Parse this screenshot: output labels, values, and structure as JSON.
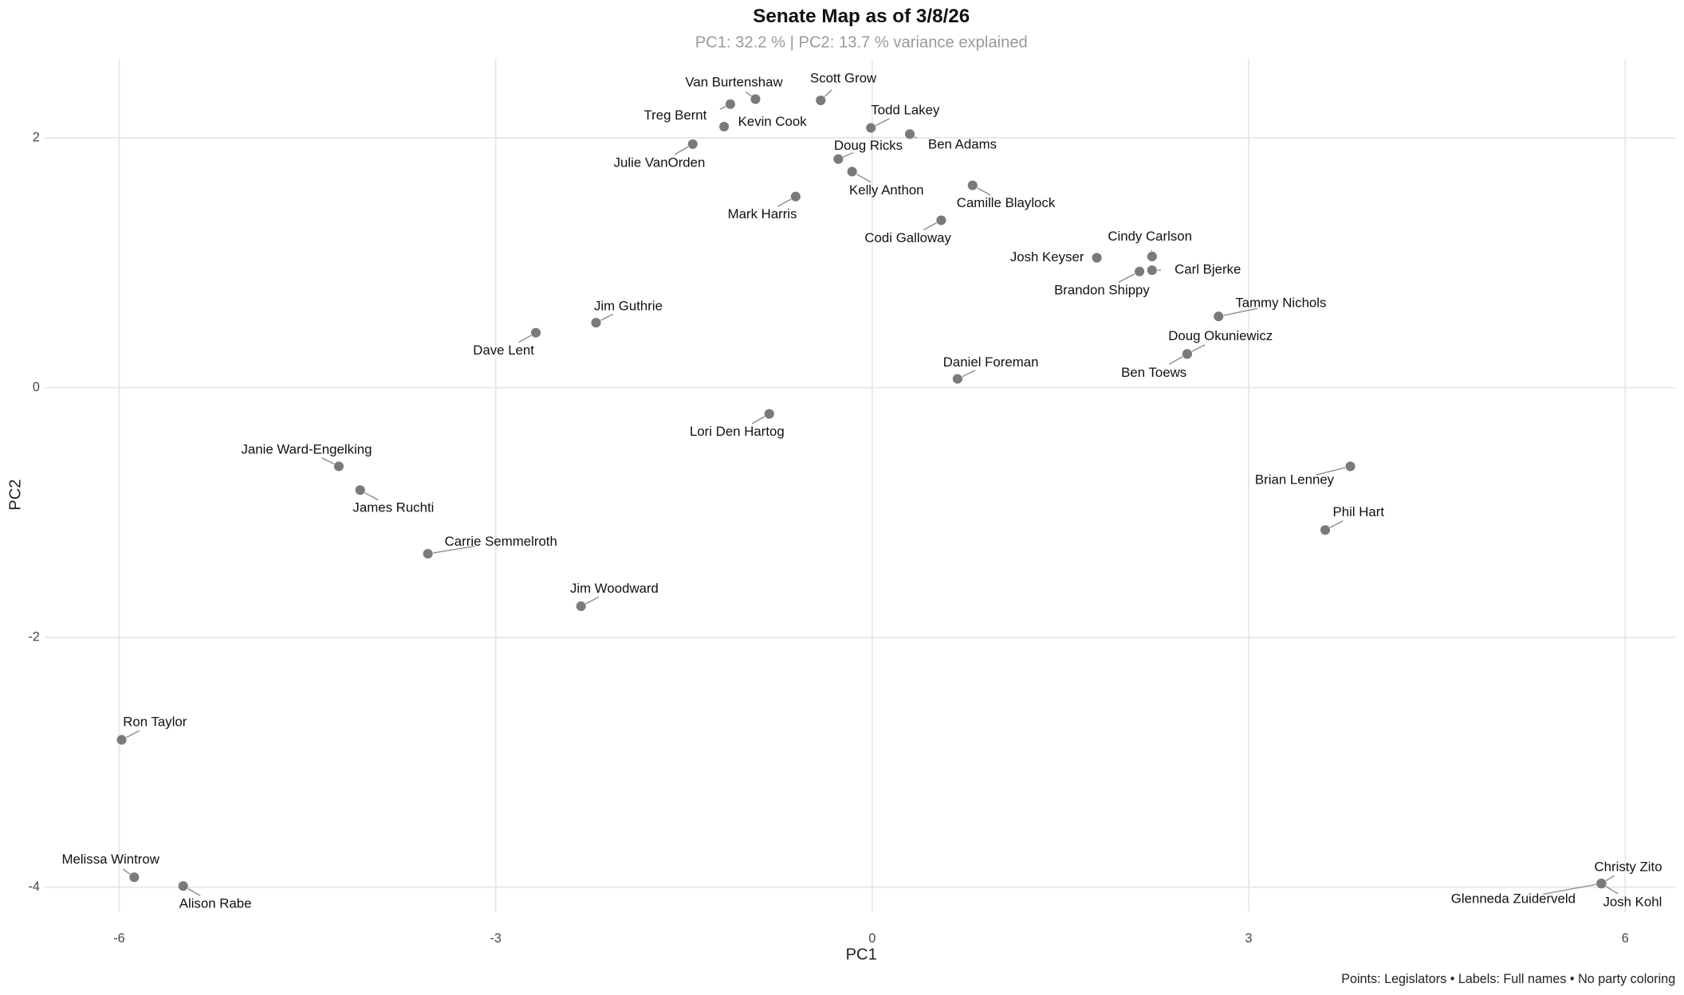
{
  "chart_data": {
    "type": "scatter",
    "title": "Senate Map as of 3/8/26",
    "subtitle": "PC1: 32.2 % | PC2: 13.7 % variance explained",
    "x_label": "PC1",
    "y_label": "PC2",
    "caption": "Points: Legislators • Labels: Full names • No party coloring",
    "color": "#7a7a7a",
    "grid": true,
    "xlim": [
      -6.59,
      6.4
    ],
    "ylim": [
      -4.2,
      2.63
    ],
    "xticks": [
      -6,
      -3,
      0,
      3,
      6
    ],
    "yticks": [
      -4,
      -2,
      0,
      2
    ],
    "labels": [
      "Van Burtenshaw",
      "Scott Grow",
      "Treg Bernt",
      "Kevin Cook",
      "Todd Lakey",
      "Ben Adams",
      "Julie VanOrden",
      "Doug Ricks",
      "Kelly Anthon",
      "Camille Blaylock",
      "Mark Harris",
      "Codi Galloway",
      "Josh Keyser",
      "Cindy Carlson",
      "Carl Bjerke",
      "Brandon Shippy",
      "Tammy Nichols",
      "Doug Okuniewicz",
      "Ben Toews",
      "Jim Guthrie",
      "Dave Lent",
      "Daniel Foreman",
      "Lori Den Hartog",
      "Brian Lenney",
      "Janie Ward-Engelking",
      "James Ruchti",
      "Phil Hart",
      "Carrie Semmelroth",
      "Jim Woodward",
      "Ron Taylor",
      "Melissa Wintrow",
      "Alison Rabe",
      "Christy Zito",
      "Glenneda Zuiderveld",
      "Josh Kohl"
    ],
    "x": [
      -0.93,
      -0.41,
      -1.13,
      -1.18,
      -0.01,
      0.3,
      -1.43,
      -0.27,
      -0.16,
      0.8,
      -0.61,
      0.55,
      1.79,
      2.23,
      2.23,
      2.13,
      2.76,
      2.51,
      2.51,
      -2.2,
      -2.68,
      0.68,
      -0.82,
      3.81,
      -4.25,
      -4.08,
      3.61,
      -3.54,
      -2.32,
      -5.98,
      -5.88,
      -5.49,
      5.81,
      5.81,
      5.81
    ],
    "values": [
      2.31,
      2.3,
      2.27,
      2.09,
      2.08,
      2.03,
      1.95,
      1.83,
      1.73,
      1.62,
      1.53,
      1.34,
      1.04,
      1.05,
      0.94,
      0.93,
      0.57,
      0.27,
      0.27,
      0.52,
      0.44,
      0.07,
      -0.21,
      -0.63,
      -0.63,
      -0.82,
      -1.14,
      -1.33,
      -1.75,
      -2.82,
      -3.92,
      -3.99,
      -3.97,
      -3.97,
      -3.97
    ]
  }
}
